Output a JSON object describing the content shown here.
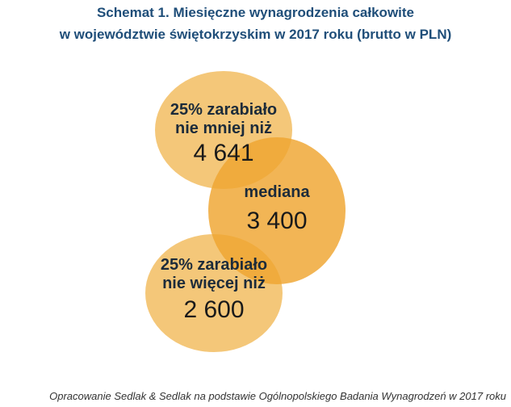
{
  "title": {
    "line1": "Schemat 1. Miesięczne wynagrodzenia całkowite",
    "line2": "w województwie świętokrzyskim w 2017 roku (brutto w PLN)"
  },
  "bubbles": {
    "top": {
      "label_line1": "25% zarabiało",
      "label_line2": "nie mniej niż",
      "value": "4 641"
    },
    "median": {
      "label": "mediana",
      "value": "3 400"
    },
    "bottom": {
      "label_line1": "25% zarabiało",
      "label_line2": "nie więcej niż",
      "value": "2 600"
    }
  },
  "source": "Opracowanie Sedlak & Sedlak na podstawie Ogólnopolskiego Badania Wynagrodzeń w 2017 roku",
  "colors": {
    "title": "#1f4e79",
    "outer_bubble": "#f3bf66",
    "median_bubble": "#efa52f"
  }
}
